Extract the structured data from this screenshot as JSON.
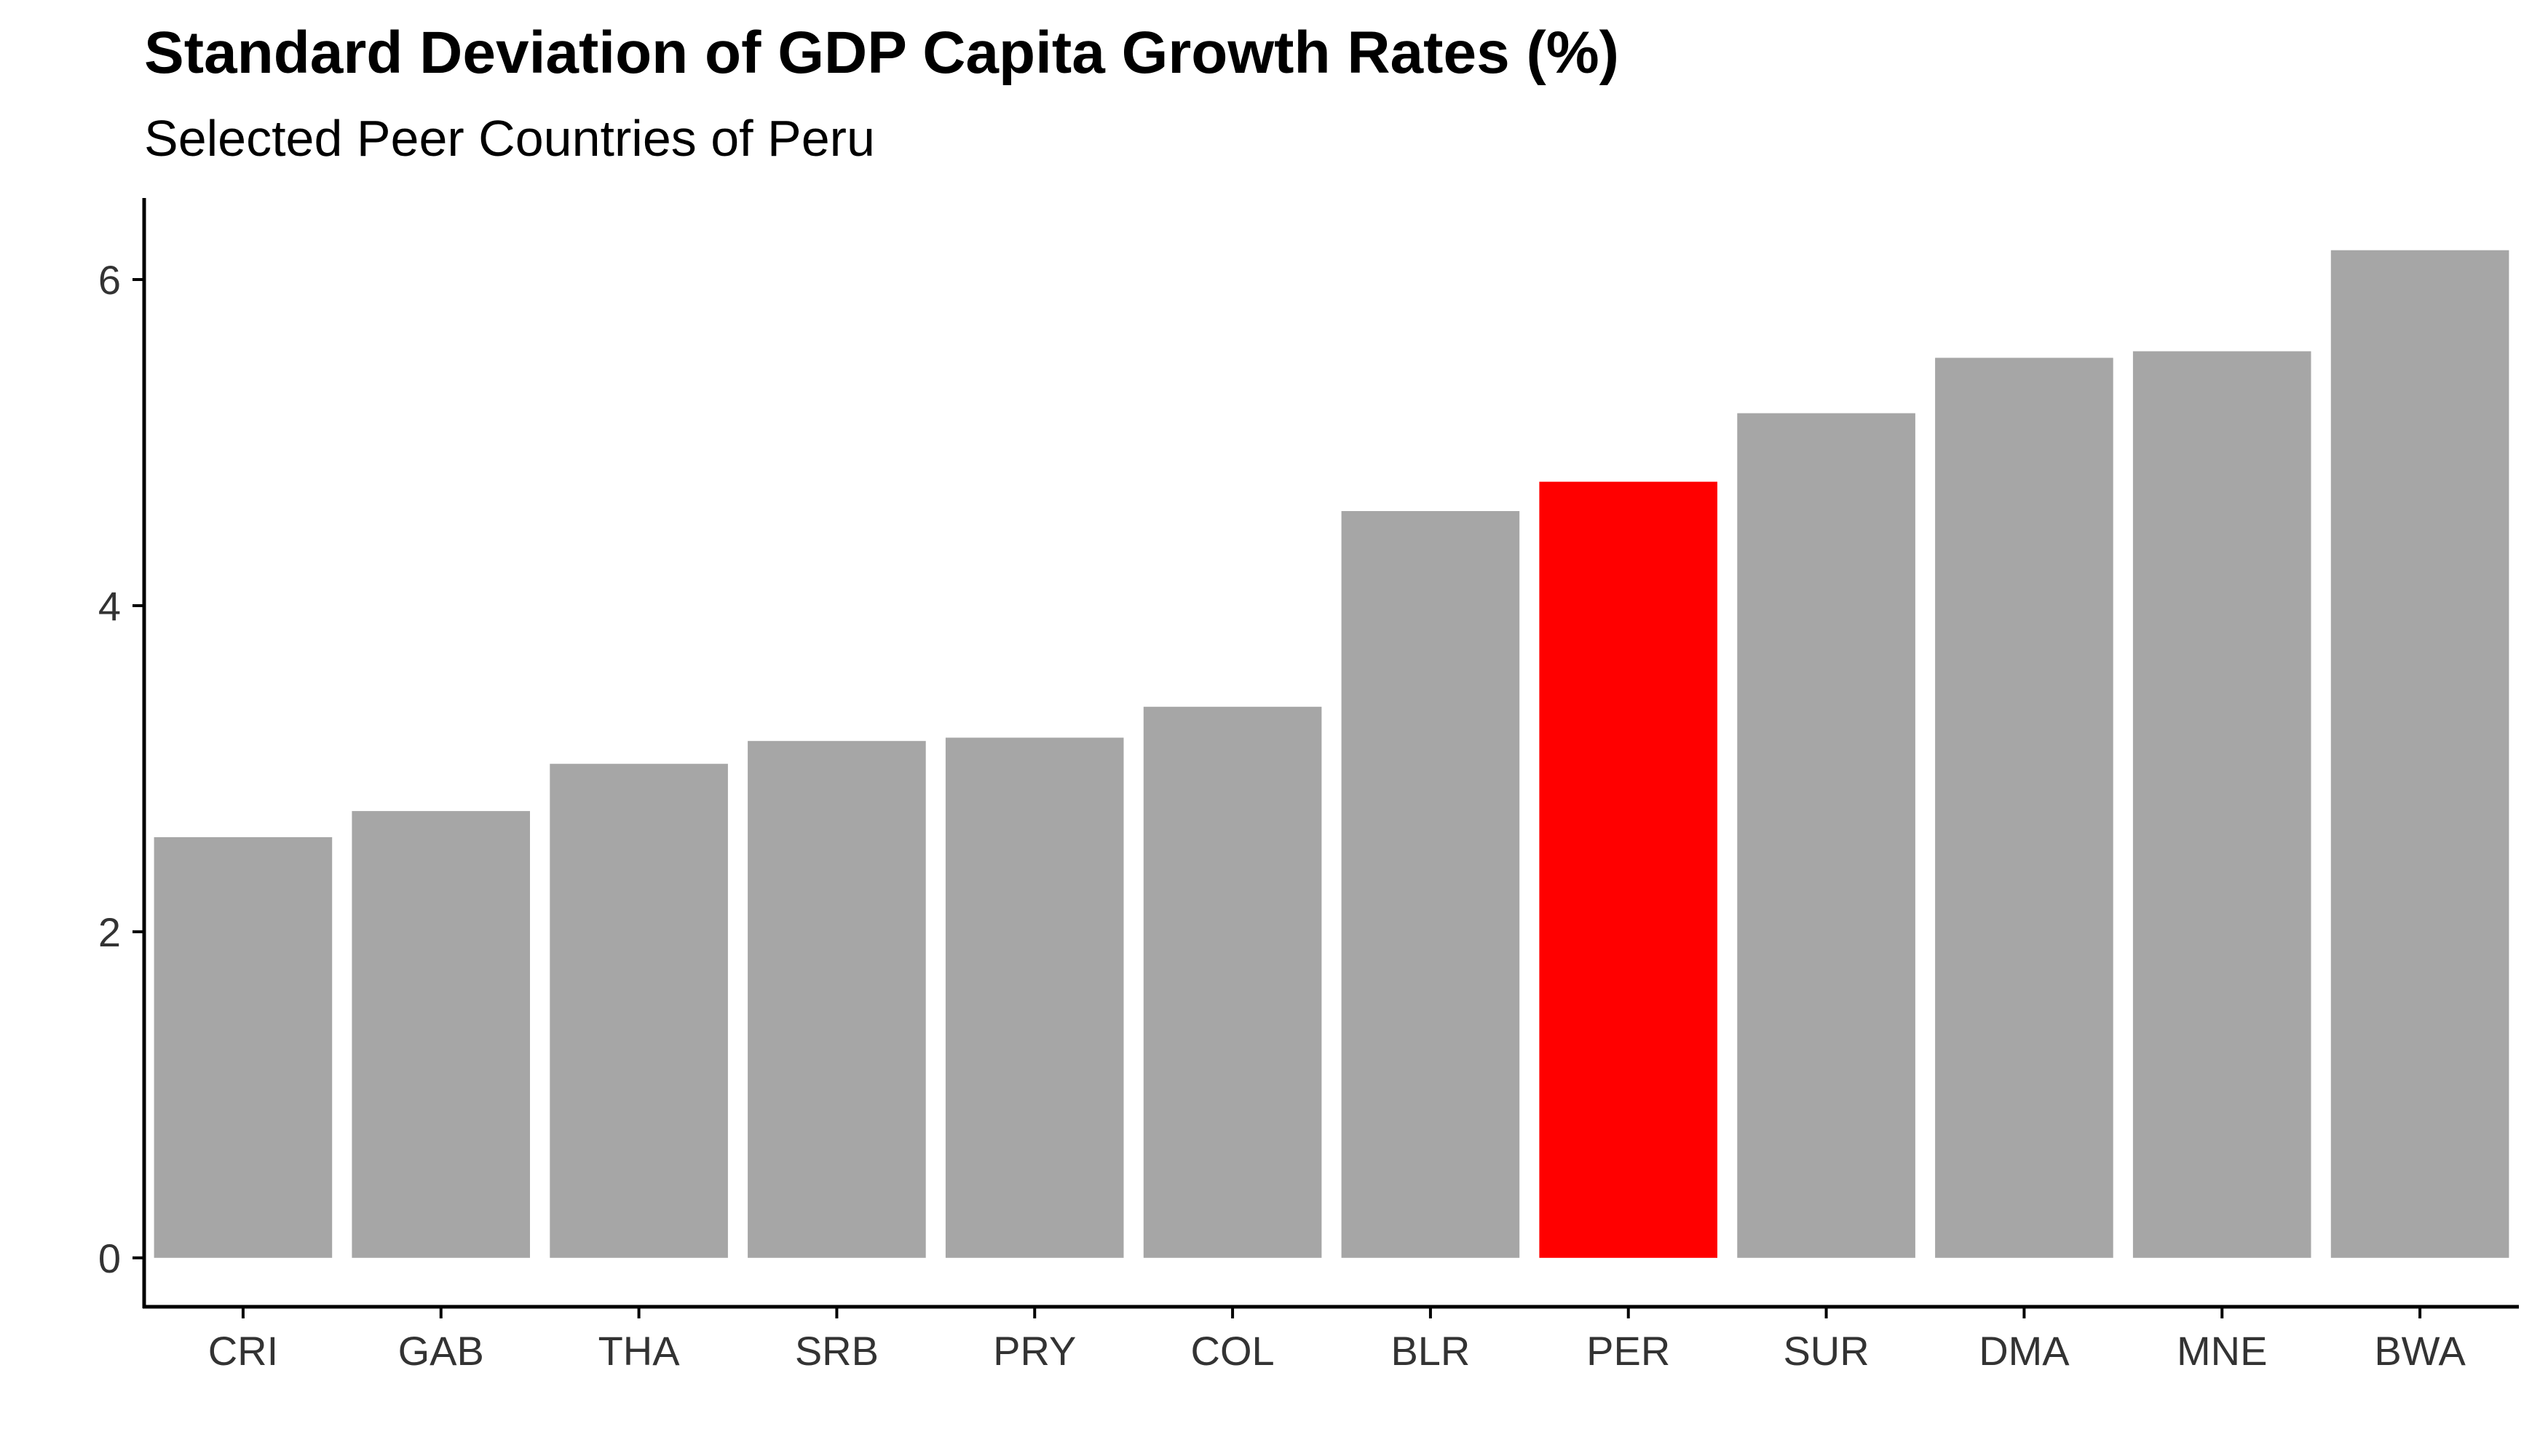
{
  "chart_data": {
    "type": "bar",
    "title": "Standard Deviation of GDP Capita Growth Rates (%)",
    "subtitle": "Selected Peer Countries of Peru",
    "xlabel": "",
    "ylabel": "",
    "categories": [
      "CRI",
      "GAB",
      "THA",
      "SRB",
      "PRY",
      "COL",
      "BLR",
      "PER",
      "SUR",
      "DMA",
      "MNE",
      "BWA"
    ],
    "values": [
      2.58,
      2.74,
      3.03,
      3.17,
      3.19,
      3.38,
      4.58,
      4.76,
      5.18,
      5.52,
      5.56,
      6.18
    ],
    "highlight": "PER",
    "ylim": [
      -0.3,
      6.5
    ],
    "yticks": [
      0,
      2,
      4,
      6
    ],
    "grid": false,
    "legend": "none",
    "colors": {
      "bar": "#a6a6a6",
      "highlight": "#ff0000",
      "axis": "#000000",
      "text": "#333333"
    }
  }
}
